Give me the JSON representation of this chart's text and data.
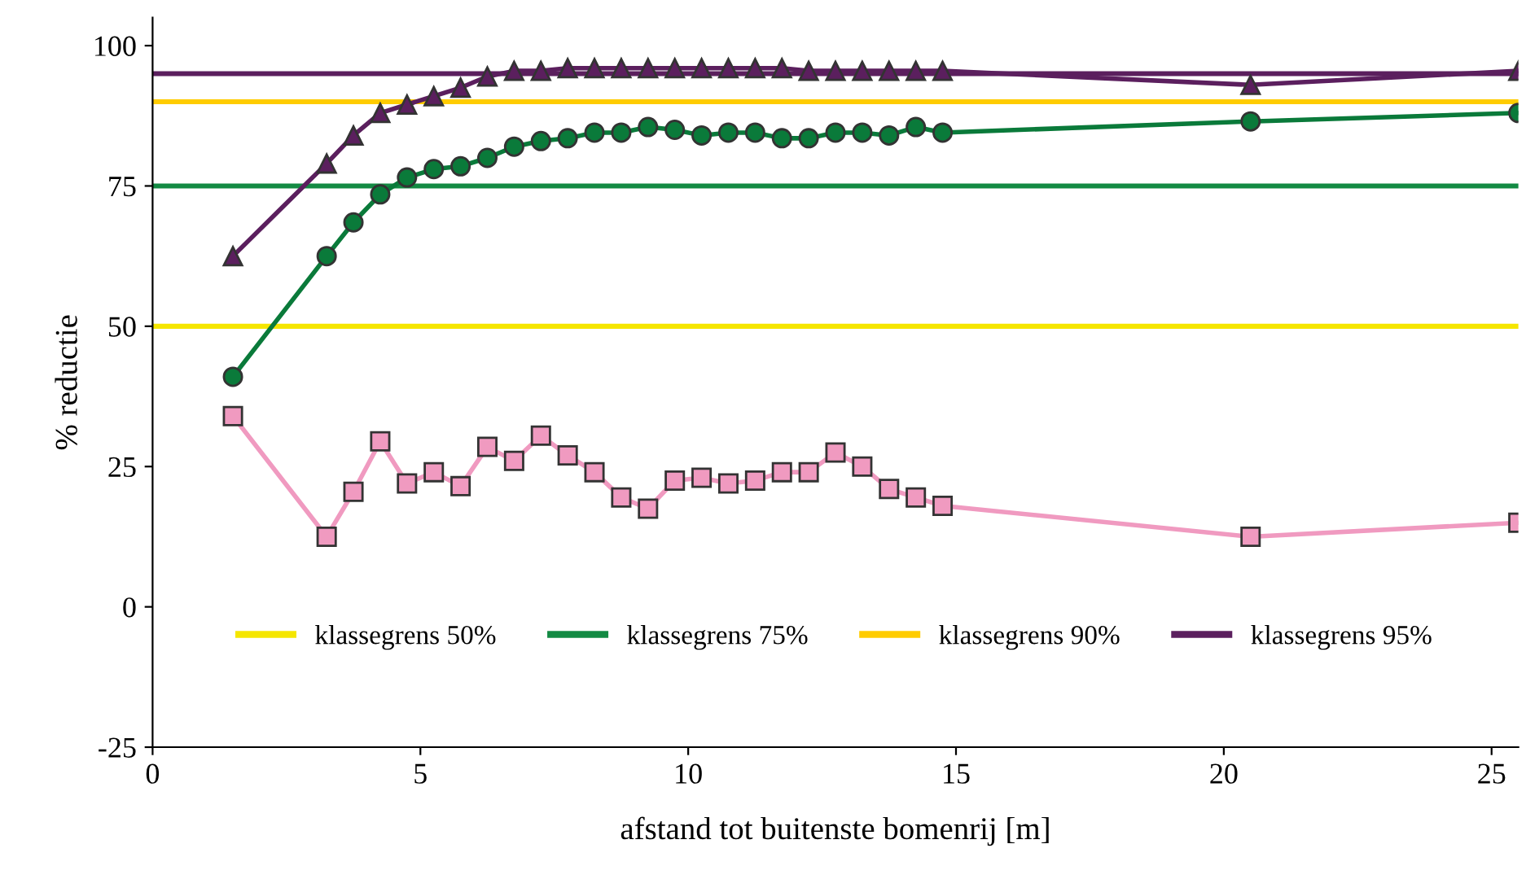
{
  "chart_data": {
    "type": "line",
    "xlabel": "afstand tot buitenste bomenrij [m]",
    "ylabel": "% reductie",
    "x": [
      1.5,
      3.25,
      3.75,
      4.25,
      4.75,
      5.25,
      5.75,
      6.25,
      6.75,
      7.25,
      7.75,
      8.25,
      8.75,
      9.25,
      9.75,
      10.25,
      10.75,
      11.25,
      11.75,
      12.25,
      12.75,
      13.25,
      13.75,
      14.25,
      14.75,
      20.5,
      25.5
    ],
    "series": [
      {
        "color": "#f09ac0",
        "marker": "square",
        "values": [
          34,
          12.5,
          20.5,
          29.5,
          22,
          24,
          21.5,
          28.5,
          26,
          30.5,
          27,
          24,
          19.5,
          17.5,
          22.5,
          23,
          22,
          22.5,
          24,
          24,
          27.5,
          25,
          21,
          19.5,
          18,
          12.5,
          15
        ]
      },
      {
        "color": "#0a7a3a",
        "marker": "circle",
        "values": [
          41,
          62.5,
          68.5,
          73.5,
          76.5,
          78,
          78.5,
          80,
          82,
          83,
          83.5,
          84.5,
          84.5,
          85.5,
          85,
          84,
          84.5,
          84.5,
          83.5,
          83.5,
          84.5,
          84.5,
          84,
          85.5,
          84.5,
          86.5,
          88
        ]
      },
      {
        "color": "#5b1f5e",
        "marker": "triangle",
        "values": [
          62.5,
          79,
          84,
          88,
          89.5,
          91,
          92.5,
          94.5,
          95.5,
          95.5,
          96,
          96,
          96,
          96,
          96,
          96,
          96,
          96,
          96,
          95.5,
          95.5,
          95.5,
          95.5,
          95.5,
          95.5,
          93,
          95.5
        ]
      }
    ],
    "ref_lines": [
      {
        "axis": "y",
        "value": 50,
        "label": "klassegrens 50%",
        "color": "#f5e600"
      },
      {
        "axis": "y",
        "value": 75,
        "label": "klassegrens 75%",
        "color": "#138a43"
      },
      {
        "axis": "y",
        "value": 90,
        "label": "klassegrens 90%",
        "color": "#ffcc00"
      },
      {
        "axis": "y",
        "value": 95,
        "label": "klassegrens 95%",
        "color": "#5b1f5e"
      }
    ],
    "xlim": [
      0,
      25.5
    ],
    "xticks": [
      0,
      5,
      10,
      15,
      20,
      25
    ],
    "ylim": [
      -25,
      105
    ],
    "yticks": [
      -25,
      0,
      25,
      50,
      75,
      100
    ],
    "grid": false,
    "legend": "bottom",
    "line_style": "solid"
  }
}
